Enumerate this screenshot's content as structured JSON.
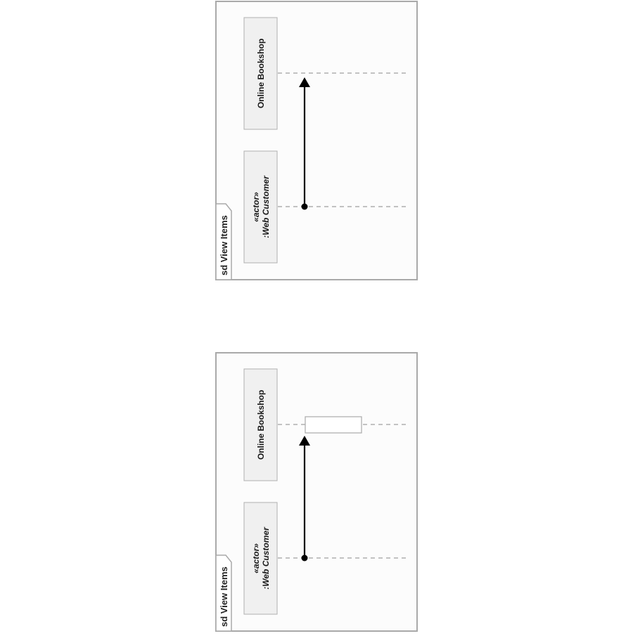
{
  "diagrams": [
    {
      "frame_label": "sd View Items",
      "lifelines": [
        {
          "name": "Online Bookshop"
        },
        {
          "stereotype": "«actor»",
          "name": ":Web Customer"
        }
      ],
      "has_activation": false
    },
    {
      "frame_label": "sd View Items",
      "lifelines": [
        {
          "name": "Online Bookshop"
        },
        {
          "stereotype": "«actor»",
          "name": ":Web Customer"
        }
      ],
      "has_activation": true
    }
  ]
}
